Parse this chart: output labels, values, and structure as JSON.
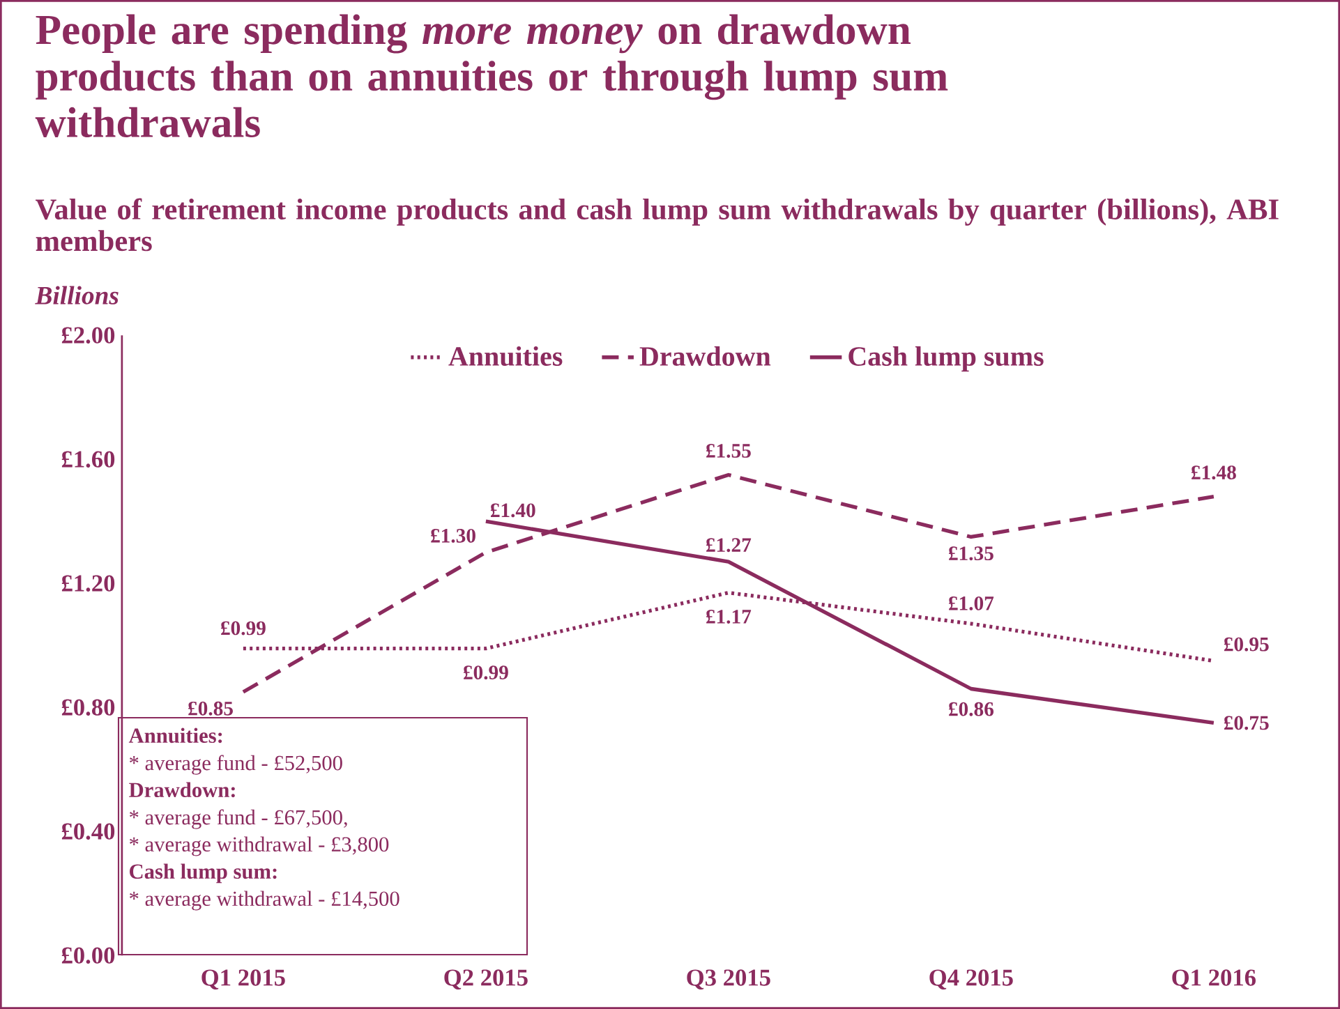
{
  "chart_data": {
    "type": "line",
    "title": "People are spending *more money* on drawdown products than on annuities or through lump sum withdrawals",
    "subtitle": "Value of retirement income products and cash lump sum withdrawals by quarter (billions), ABI members",
    "ylabel": "Billions",
    "categories": [
      "Q1 2015",
      "Q2 2015",
      "Q3 2015",
      "Q4 2015",
      "Q1 2016"
    ],
    "series": [
      {
        "name": "Annuities",
        "color": "#8b2b5e",
        "line_style": "dotted",
        "values": [
          0.99,
          0.99,
          1.17,
          1.07,
          0.95
        ],
        "value_labels": [
          "£0.99",
          "£0.99",
          "£1.17",
          "£1.07",
          "£0.95"
        ]
      },
      {
        "name": "Drawdown",
        "color": "#8b2b5e",
        "line_style": "dashed",
        "values": [
          0.85,
          1.3,
          1.55,
          1.35,
          1.48
        ],
        "value_labels": [
          "£0.85",
          "£1.30",
          "£1.55",
          "£1.35",
          "£1.48"
        ]
      },
      {
        "name": "Cash lump sums",
        "color": "#8b2b5e",
        "line_style": "solid",
        "values": [
          null,
          1.4,
          1.27,
          0.86,
          0.75
        ],
        "value_labels": [
          null,
          "£1.40",
          "£1.27",
          "£0.86",
          "£0.75"
        ]
      }
    ],
    "ylim": [
      0,
      2
    ],
    "yticks": [
      {
        "value": 0,
        "label": "£0.00"
      },
      {
        "value": 0.4,
        "label": "£0.40"
      },
      {
        "value": 0.8,
        "label": "£0.80"
      },
      {
        "value": 1.2,
        "label": "£1.20"
      },
      {
        "value": 1.6,
        "label": "£1.60"
      },
      {
        "value": 2.0,
        "label": "£2.00"
      }
    ],
    "legend": "top",
    "annotations": [
      "**Annuities:**",
      "* average fund - £52,500",
      "**Drawdown:**",
      "* average fund - £67,500,",
      "* average withdrawal - £3,800",
      "**Cash lump sum:**",
      "* average withdrawal - £14,500"
    ]
  }
}
